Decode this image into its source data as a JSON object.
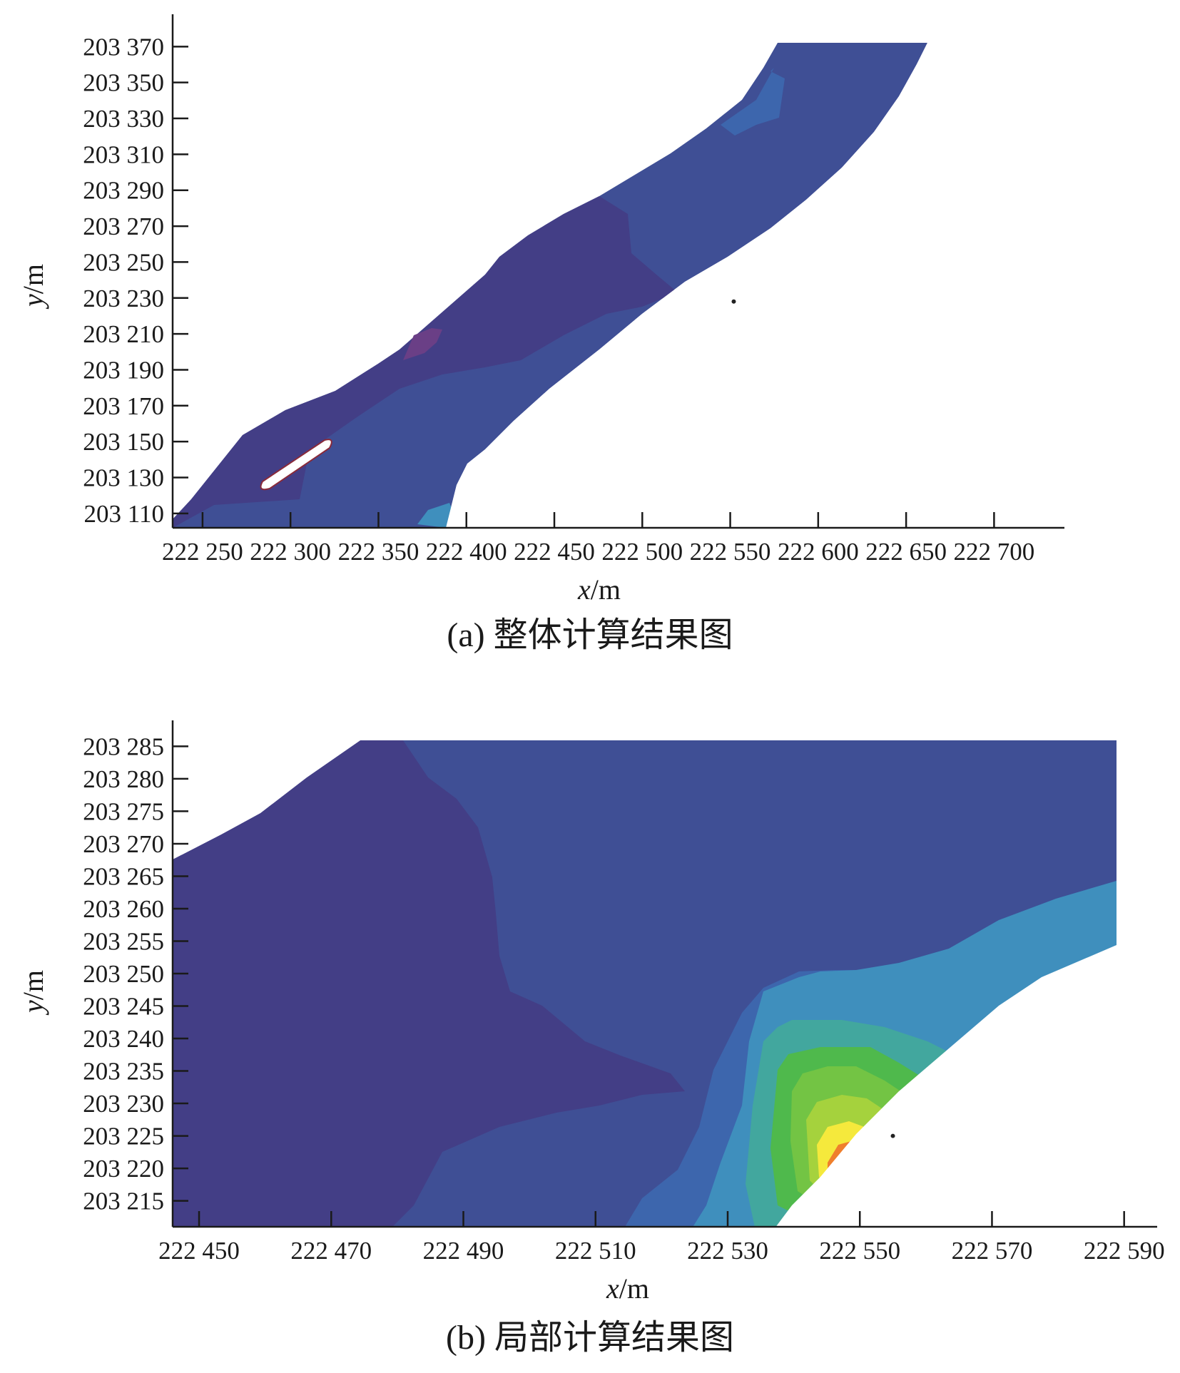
{
  "colors": {
    "deep": "#433e86",
    "mid": "#3f4f95",
    "light": "#3d66ad",
    "cyan": "#3f8fbd",
    "teal": "#42a79e",
    "green": "#4fb94c",
    "lime": "#a5d23d",
    "yellow": "#f5e93c",
    "orange": "#ef7f2c",
    "red": "#d7342a",
    "axis": "#1a1a1a"
  },
  "chart_data": [
    {
      "type": "contour",
      "panel": "a",
      "xlabel_var": "x",
      "xlabel_unit": "/m",
      "ylabel_var": "y",
      "ylabel_unit": "/m",
      "caption": "(a) 整体计算结果图",
      "xlim": [
        222233,
        222740
      ],
      "ylim": [
        203102,
        203388
      ],
      "x_ticks": [
        222250,
        222300,
        222350,
        222400,
        222450,
        222500,
        222550,
        222600,
        222650,
        222700
      ],
      "x_tick_labels": [
        "222 250",
        "222 300",
        "222 350",
        "222 400",
        "222 450",
        "222 500",
        "222 550",
        "222 600",
        "222 650",
        "222 700"
      ],
      "y_ticks": [
        203110,
        203130,
        203150,
        203170,
        203190,
        203210,
        203230,
        203250,
        203270,
        203290,
        203310,
        203330,
        203350,
        203370
      ],
      "y_tick_labels": [
        "203 110",
        "203 130",
        "203 150",
        "203 170",
        "203 190",
        "203 210",
        "203 230",
        "203 250",
        "203 270",
        "203 290",
        "203 310",
        "203 330",
        "203 350",
        "203 370"
      ],
      "peak_location": [
        222552,
        203228
      ]
    },
    {
      "type": "contour",
      "panel": "b",
      "xlabel_var": "x",
      "xlabel_unit": "/m",
      "ylabel_var": "y",
      "ylabel_unit": "/m",
      "caption": "(b) 局部计算结果图",
      "xlim": [
        222446,
        222595
      ],
      "ylim": [
        203211,
        203289
      ],
      "x_ticks": [
        222450,
        222470,
        222490,
        222510,
        222530,
        222550,
        222570,
        222590
      ],
      "x_tick_labels": [
        "222 450",
        "222 470",
        "222 490",
        "222 510",
        "222 530",
        "222 550",
        "222 570",
        "222 590"
      ],
      "y_ticks": [
        203215,
        203220,
        203225,
        203230,
        203235,
        203240,
        203245,
        203250,
        203255,
        203260,
        203265,
        203270,
        203275,
        203280,
        203285
      ],
      "y_tick_labels": [
        "203 215",
        "203 220",
        "203 225",
        "203 230",
        "203 235",
        "203 240",
        "203 245",
        "203 250",
        "203 255",
        "203 260",
        "203 265",
        "203 270",
        "203 275",
        "203 280",
        "203 285"
      ],
      "peak_location": [
        222555,
        203225
      ]
    }
  ]
}
